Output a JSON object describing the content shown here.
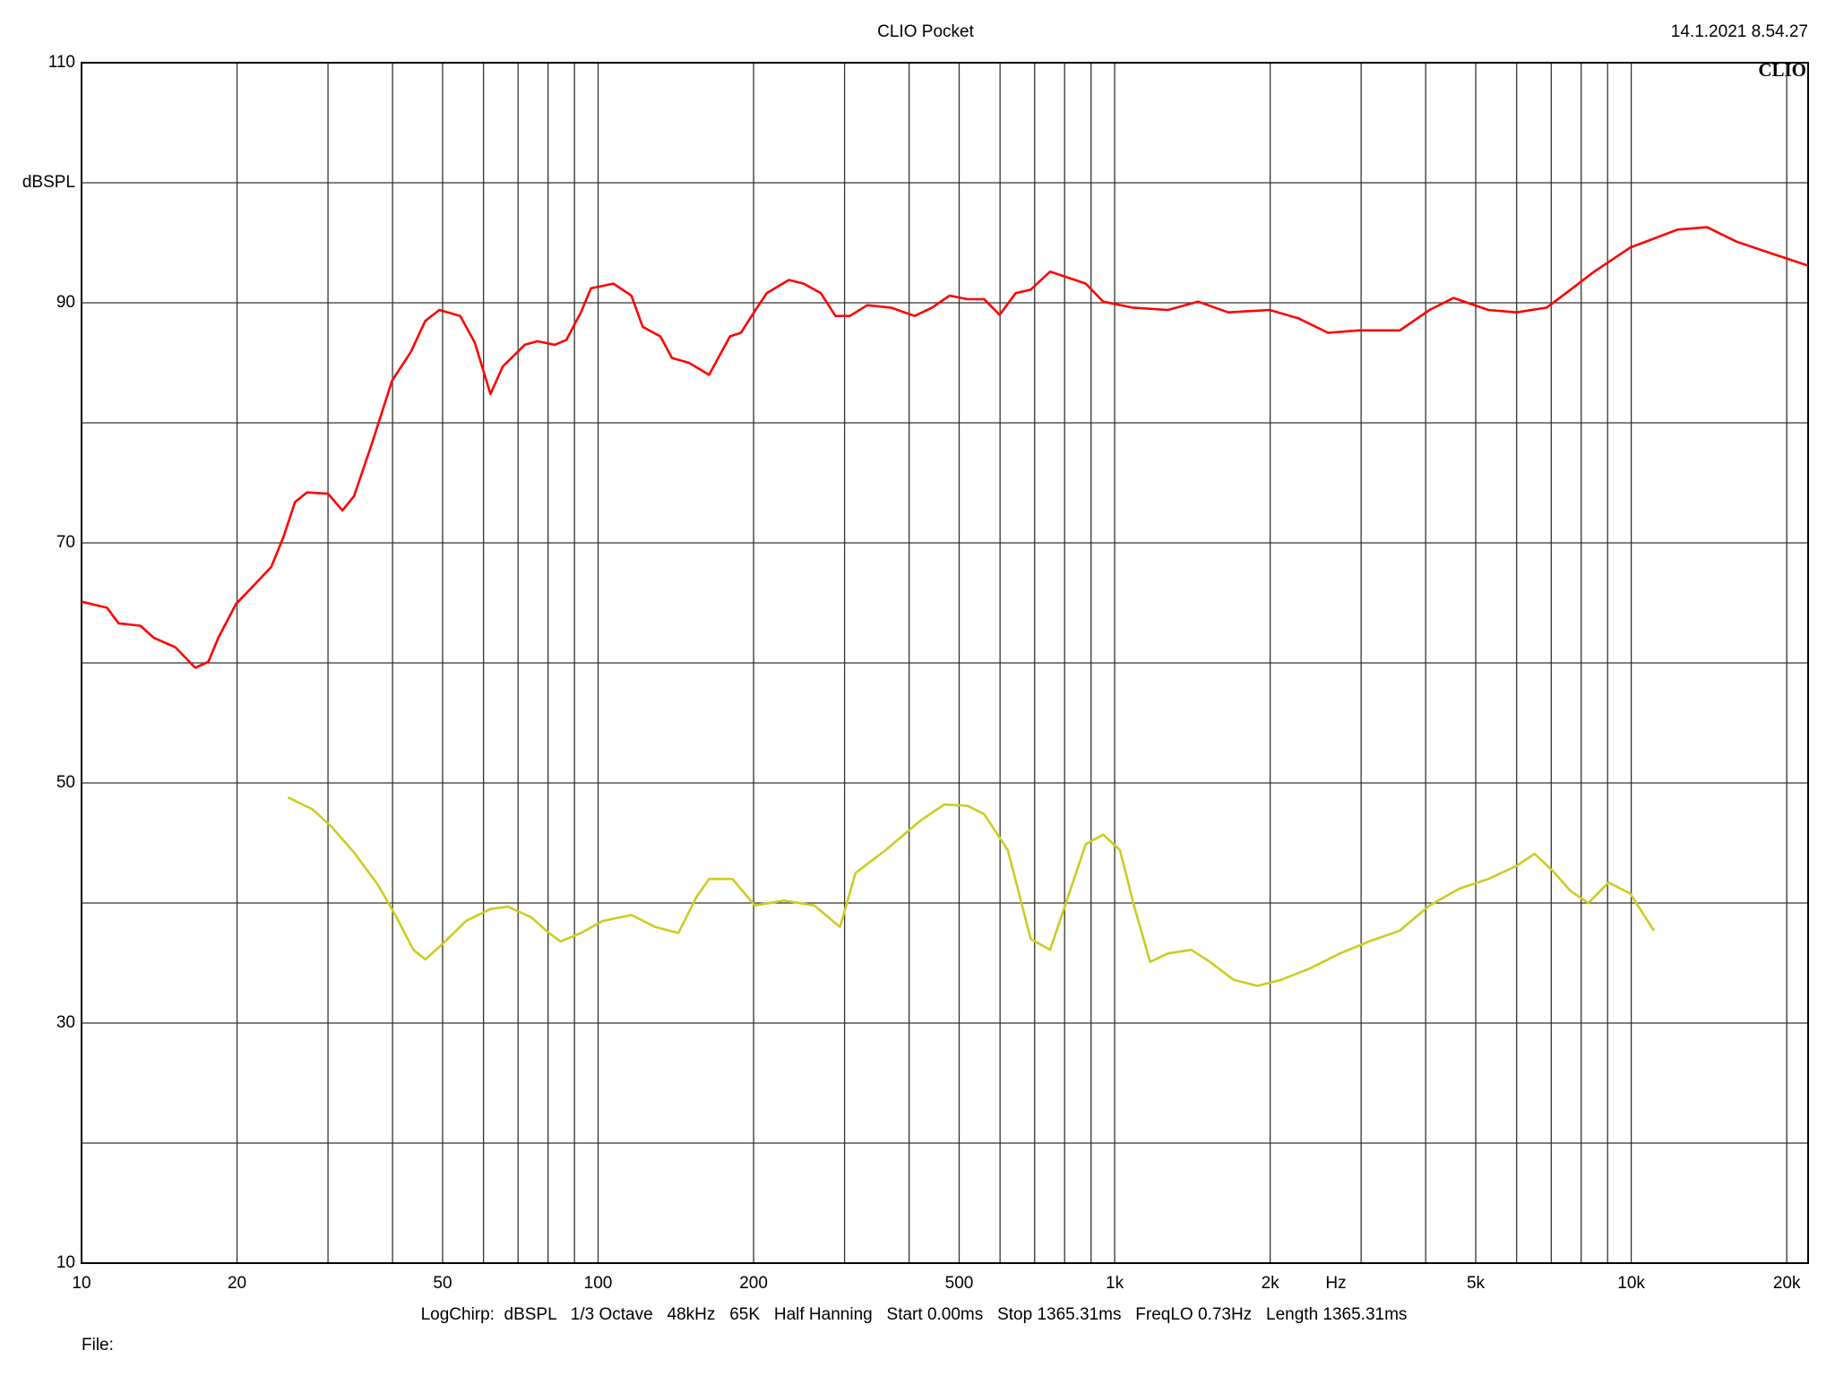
{
  "chart_data": {
    "type": "line",
    "title": "CLIO Pocket",
    "timestamp": "14.1.2021 8.54.27",
    "logo": "CLIO",
    "x_label": "Hz",
    "y_label": "dBSPL",
    "settings": "LogChirp:  dBSPL   1/3 Octave   48kHz   65K   Half Hanning   Start 0.00ms   Stop 1365.31ms   FreqLO 0.73Hz   Length 1365.31ms",
    "file_label": "File:",
    "xscale": "log",
    "grid": true,
    "xlim": [
      10,
      22000
    ],
    "ylim": [
      10,
      110
    ],
    "xticks": [
      10,
      20,
      50,
      100,
      200,
      500,
      {
        "value": 1000,
        "label": "1k"
      },
      {
        "value": 2000,
        "label": "2k"
      },
      {
        "value": 5000,
        "label": "5k"
      },
      {
        "value": 10000,
        "label": "10k"
      },
      {
        "value": 20000,
        "label": "20k"
      }
    ],
    "xminor": [
      30,
      40,
      60,
      70,
      80,
      90,
      300,
      400,
      600,
      700,
      800,
      900,
      3000,
      4000,
      6000,
      7000,
      8000,
      9000
    ],
    "yticks": [
      10,
      30,
      50,
      70,
      90,
      110
    ],
    "yminor": [
      20,
      40,
      60,
      80,
      100
    ],
    "series": [
      {
        "color": "#ff0000",
        "x": [
          10,
          11.2,
          11.8,
          13,
          13.8,
          15.2,
          16.6,
          17.6,
          18.4,
          19.9,
          21.6,
          23.3,
          24.6,
          25.9,
          27.3,
          30,
          32,
          33.7,
          36.5,
          39.9,
          43.4,
          46.3,
          49.3,
          54.1,
          57.7,
          61.9,
          65.4,
          72.1,
          76.3,
          82.4,
          86.8,
          92.6,
          96.9,
          107,
          116,
          122,
          132,
          139,
          150,
          164,
          180,
          189,
          201,
          212,
          234,
          250,
          270,
          288,
          307,
          332,
          369,
          410,
          443,
          479,
          519,
          559,
          599,
          643,
          688,
          750,
          812,
          879,
          950,
          1083,
          1268,
          1450,
          1659,
          1995,
          2270,
          2590,
          2967,
          3565,
          4070,
          4530,
          5290,
          6000,
          6860,
          7630,
          8480,
          9950,
          12290,
          14020,
          15990,
          18730,
          22000
        ],
        "values": [
          65.1,
          64.6,
          63.3,
          63.1,
          62.1,
          61.3,
          59.6,
          60.1,
          62.1,
          64.9,
          66.5,
          68.0,
          70.5,
          73.4,
          74.2,
          74.1,
          72.7,
          73.9,
          78.3,
          83.5,
          85.9,
          88.5,
          89.4,
          88.9,
          86.7,
          82.4,
          84.7,
          86.5,
          86.8,
          86.5,
          86.9,
          89.2,
          91.2,
          91.6,
          90.6,
          88.0,
          87.2,
          85.4,
          85.0,
          84.0,
          87.2,
          87.5,
          89.3,
          90.8,
          91.9,
          91.6,
          90.8,
          88.9,
          88.9,
          89.8,
          89.6,
          88.9,
          89.6,
          90.6,
          90.3,
          90.3,
          89.0,
          90.8,
          91.1,
          92.6,
          92.1,
          91.6,
          90.1,
          89.6,
          89.4,
          90.1,
          89.2,
          89.4,
          88.7,
          87.5,
          87.7,
          87.7,
          89.4,
          90.4,
          89.4,
          89.2,
          89.6,
          91.1,
          92.6,
          94.6,
          96.1,
          96.3,
          95.1,
          94.1,
          93.1
        ]
      },
      {
        "color": "#cccc22",
        "x": [
          25.1,
          28,
          30.4,
          33.7,
          37.5,
          40.5,
          43.9,
          46.3,
          50,
          55.5,
          61.9,
          66.9,
          74.3,
          80.3,
          84.6,
          92.6,
          102,
          116,
          129,
          143,
          155,
          164,
          182,
          201,
          229,
          262,
          294,
          315,
          360,
          422,
          468,
          519,
          559,
          621,
          688,
          750,
          812,
          879,
          950,
          1024,
          1091,
          1171,
          1268,
          1408,
          1529,
          1700,
          1890,
          2100,
          2400,
          2730,
          3110,
          3565,
          4070,
          4650,
          5290,
          6000,
          6500,
          7040,
          7630,
          8260,
          9040,
          9950,
          11060
        ],
        "values": [
          48.8,
          47.8,
          46.4,
          44.2,
          41.5,
          39.0,
          36.1,
          35.3,
          36.6,
          38.5,
          39.5,
          39.7,
          38.8,
          37.5,
          36.8,
          37.5,
          38.5,
          39.0,
          38.0,
          37.5,
          40.5,
          42.0,
          42.0,
          39.8,
          40.2,
          39.8,
          38.0,
          42.5,
          44.4,
          46.9,
          48.2,
          48.1,
          47.4,
          44.4,
          37.0,
          36.1,
          40.5,
          44.9,
          45.7,
          44.4,
          39.7,
          35.1,
          35.8,
          36.1,
          35.1,
          33.6,
          33.1,
          33.6,
          34.6,
          35.8,
          36.8,
          37.7,
          39.8,
          41.2,
          42.0,
          43.1,
          44.1,
          42.7,
          41.0,
          40.0,
          41.7,
          40.8,
          37.7
        ]
      }
    ]
  }
}
